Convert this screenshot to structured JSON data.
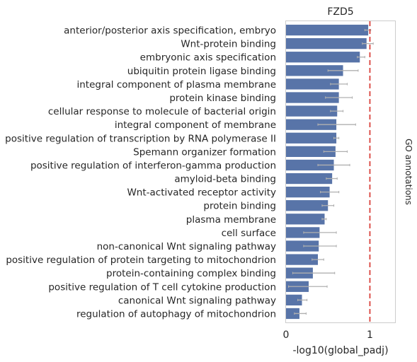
{
  "chart_data": {
    "type": "bar",
    "orientation": "horizontal",
    "title": "FZD5",
    "xlabel": "-log10(global_padj)",
    "side_label": "GO annotations",
    "xlim": [
      0,
      1.3
    ],
    "xticks": [
      0,
      1
    ],
    "reference_line": 1,
    "bar_color": "#5874a8",
    "error_color": "#b0b0b0",
    "ref_line_color": "#d9413b",
    "grid": false,
    "categories": [
      "anterior/posterior axis specification, embryo",
      "Wnt-protein binding",
      "embryonic axis specification",
      "ubiquitin protein ligase binding",
      "integral component of plasma membrane",
      "protein kinase binding",
      "cellular response to molecule of bacterial origin",
      "integral component of membrane",
      "positive regulation of transcription by RNA polymerase II",
      "Spemann organizer formation",
      "positive regulation of interferon-gamma production",
      "amyloid-beta binding",
      "Wnt-activated receptor activity",
      "protein binding",
      "plasma membrane",
      "cell surface",
      "non-canonical Wnt signaling pathway",
      "positive regulation of protein targeting to mitochondrion",
      "protein-containing complex binding",
      "positive regulation of T cell cytokine production",
      "canonical Wnt signaling pathway",
      "regulation of autophagy of mitochondrion"
    ],
    "values": [
      0.98,
      0.96,
      0.88,
      0.68,
      0.63,
      0.63,
      0.61,
      0.6,
      0.6,
      0.59,
      0.57,
      0.55,
      0.52,
      0.5,
      0.46,
      0.4,
      0.39,
      0.38,
      0.32,
      0.27,
      0.19,
      0.16
    ],
    "errors": [
      [
        0.94,
        1.01
      ],
      [
        0.91,
        1.04
      ],
      [
        0.85,
        0.94
      ],
      [
        0.5,
        0.86
      ],
      [
        0.53,
        0.73
      ],
      [
        0.47,
        0.79
      ],
      [
        0.53,
        0.68
      ],
      [
        0.38,
        0.83
      ],
      [
        0.57,
        0.63
      ],
      [
        0.45,
        0.73
      ],
      [
        0.38,
        0.76
      ],
      [
        0.48,
        0.61
      ],
      [
        0.41,
        0.63
      ],
      [
        0.43,
        0.57
      ],
      [
        0.43,
        0.48
      ],
      [
        0.21,
        0.6
      ],
      [
        0.21,
        0.6
      ],
      [
        0.31,
        0.45
      ],
      [
        0.08,
        0.58
      ],
      [
        0.03,
        0.49
      ],
      [
        0.14,
        0.25
      ],
      [
        0.1,
        0.24
      ]
    ]
  }
}
